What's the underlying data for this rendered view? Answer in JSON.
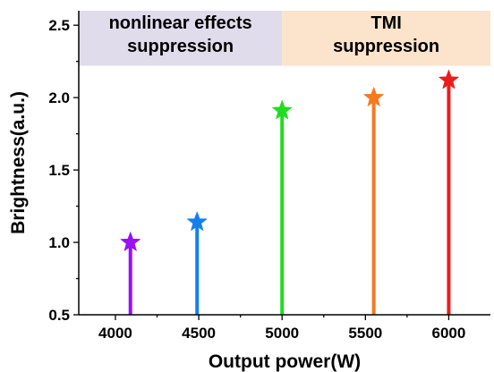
{
  "chart_data": {
    "type": "scatter",
    "x": [
      4090,
      4490,
      5000,
      5550,
      6000
    ],
    "y": [
      1.0,
      1.14,
      1.91,
      2.0,
      2.12
    ],
    "point_colors": [
      "#9b10f2",
      "#1580ec",
      "#22dc22",
      "#f47a20",
      "#ec1c1c"
    ],
    "marker": "star",
    "stems": true,
    "stem_base": 0.5,
    "xlabel": "Output power(W)",
    "ylabel": "Brightness(a.u.)",
    "xlim": [
      3780,
      6250
    ],
    "ylim": [
      0.5,
      2.6
    ],
    "xticks": [
      4000,
      4500,
      5000,
      5500,
      6000
    ],
    "xtick_labels": [
      "4000",
      "4500",
      "5000",
      "5500",
      "6000"
    ],
    "yticks": [
      0.5,
      1.0,
      1.5,
      2.0,
      2.5
    ],
    "ytick_labels": [
      "0.5",
      "1.0",
      "1.5",
      "2.0",
      "2.5"
    ],
    "grid": false,
    "regions": [
      {
        "x0": 3780,
        "x1": 5000,
        "y0": 2.22,
        "y1": 2.6,
        "color": "#e1dcec",
        "lines": [
          "nonlinear effects",
          "suppression"
        ]
      },
      {
        "x0": 5000,
        "x1": 6250,
        "y0": 2.22,
        "y1": 2.6,
        "color": "#fbe3cc",
        "lines": [
          "TMI",
          "suppression"
        ]
      }
    ]
  }
}
